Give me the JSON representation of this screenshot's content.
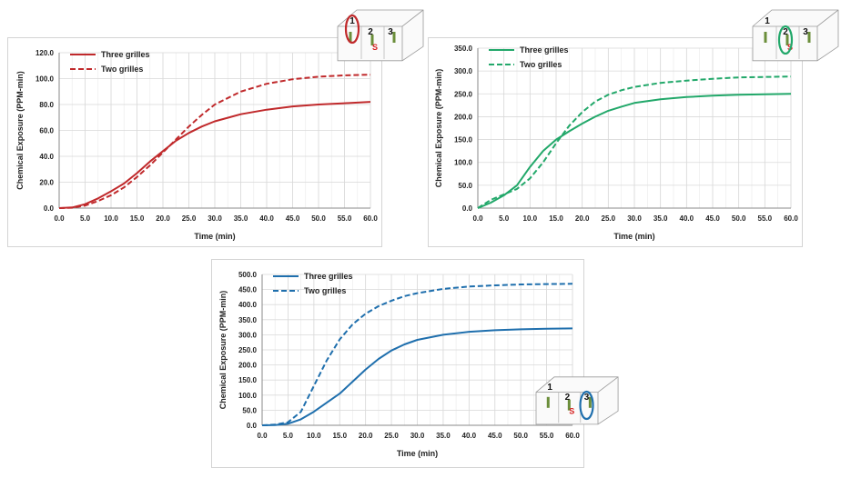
{
  "chart_data": [
    {
      "type": "line",
      "xlabel": "Time (min)",
      "ylabel": "Chemical Exposure (PPM-min)",
      "xlim": [
        0,
        60
      ],
      "ylim": [
        0,
        120
      ],
      "x_ticks": [
        "0.0",
        "5.0",
        "10.0",
        "15.0",
        "20.0",
        "25.0",
        "30.0",
        "35.0",
        "40.0",
        "45.0",
        "50.0",
        "55.0",
        "60.0"
      ],
      "y_ticks": [
        "0.0",
        "20.0",
        "40.0",
        "60.0",
        "80.0",
        "100.0",
        "120.0"
      ],
      "grid": true,
      "legend": "top-left",
      "color": "#c0292b",
      "inset": {
        "labels": [
          "1",
          "2",
          "3"
        ],
        "highlight": "1",
        "source_mark": "S"
      },
      "x": [
        0,
        2.5,
        5,
        7.5,
        10,
        12.5,
        15,
        17.5,
        20,
        22.5,
        25,
        27.5,
        30,
        35,
        40,
        45,
        50,
        55,
        60
      ],
      "series": [
        {
          "name": "Three grilles",
          "style": "solid",
          "values": [
            0,
            0.5,
            3,
            7.5,
            13,
            19,
            27,
            36,
            44,
            52,
            58,
            63,
            67,
            72.5,
            76,
            78.5,
            80,
            81,
            82
          ]
        },
        {
          "name": "Two grilles",
          "style": "dashed",
          "values": [
            0,
            0.3,
            2,
            5.5,
            10,
            16,
            24,
            33,
            43,
            53,
            63,
            72,
            80,
            90,
            96,
            99.5,
            101.5,
            102.5,
            103
          ]
        }
      ]
    },
    {
      "type": "line",
      "xlabel": "Time (min)",
      "ylabel": "Chemical Exposure (PPM-min)",
      "xlim": [
        0,
        60
      ],
      "ylim": [
        0,
        350
      ],
      "x_ticks": [
        "0.0",
        "5.0",
        "10.0",
        "15.0",
        "20.0",
        "25.0",
        "30.0",
        "35.0",
        "40.0",
        "45.0",
        "50.0",
        "55.0",
        "60.0"
      ],
      "y_ticks": [
        "0.0",
        "50.0",
        "100.0",
        "150.0",
        "200.0",
        "250.0",
        "300.0",
        "350.0"
      ],
      "grid": true,
      "legend": "top-left",
      "color": "#22a86a",
      "inset": {
        "labels": [
          "1",
          "2",
          "3"
        ],
        "highlight": "2",
        "source_mark": "S"
      },
      "x": [
        0,
        2.5,
        5,
        7.5,
        10,
        12.5,
        15,
        17.5,
        20,
        22.5,
        25,
        27.5,
        30,
        35,
        40,
        45,
        50,
        55,
        60
      ],
      "series": [
        {
          "name": "Three grilles",
          "style": "solid",
          "values": [
            0,
            12,
            28,
            50,
            90,
            125,
            150,
            168,
            185,
            200,
            213,
            222,
            230,
            238,
            243,
            246,
            248,
            249,
            250
          ]
        },
        {
          "name": "Two grilles",
          "style": "dashed",
          "values": [
            0,
            18,
            30,
            42,
            65,
            100,
            142,
            180,
            210,
            233,
            248,
            258,
            265,
            274,
            279,
            283,
            286,
            287,
            288
          ]
        }
      ]
    },
    {
      "type": "line",
      "xlabel": "Time (min)",
      "ylabel": "Chemical Exposure (PPM-min)",
      "xlim": [
        0,
        60
      ],
      "ylim": [
        0,
        500
      ],
      "x_ticks": [
        "0.0",
        "5.0",
        "10.0",
        "15.0",
        "20.0",
        "25.0",
        "30.0",
        "35.0",
        "40.0",
        "45.0",
        "50.0",
        "55.0",
        "60.0"
      ],
      "y_ticks": [
        "0.0",
        "50.0",
        "100.0",
        "150.0",
        "200.0",
        "250.0",
        "300.0",
        "350.0",
        "400.0",
        "450.0",
        "500.0"
      ],
      "grid": true,
      "legend": "top-left",
      "color": "#1f6fad",
      "inset": {
        "labels": [
          "1",
          "2",
          "3"
        ],
        "highlight": "3",
        "source_mark": "S"
      },
      "x": [
        0,
        2.5,
        5,
        7.5,
        10,
        12.5,
        15,
        17.5,
        20,
        22.5,
        25,
        27.5,
        30,
        35,
        40,
        45,
        50,
        55,
        60
      ],
      "series": [
        {
          "name": "Three grilles",
          "style": "solid",
          "values": [
            0,
            1,
            5,
            20,
            45,
            75,
            105,
            145,
            185,
            220,
            248,
            268,
            283,
            300,
            310,
            315,
            318,
            320,
            321
          ]
        },
        {
          "name": "Two grilles",
          "style": "dashed",
          "values": [
            0,
            2,
            10,
            45,
            130,
            215,
            285,
            335,
            370,
            395,
            413,
            428,
            438,
            452,
            460,
            464,
            467,
            468,
            469
          ]
        }
      ]
    }
  ]
}
